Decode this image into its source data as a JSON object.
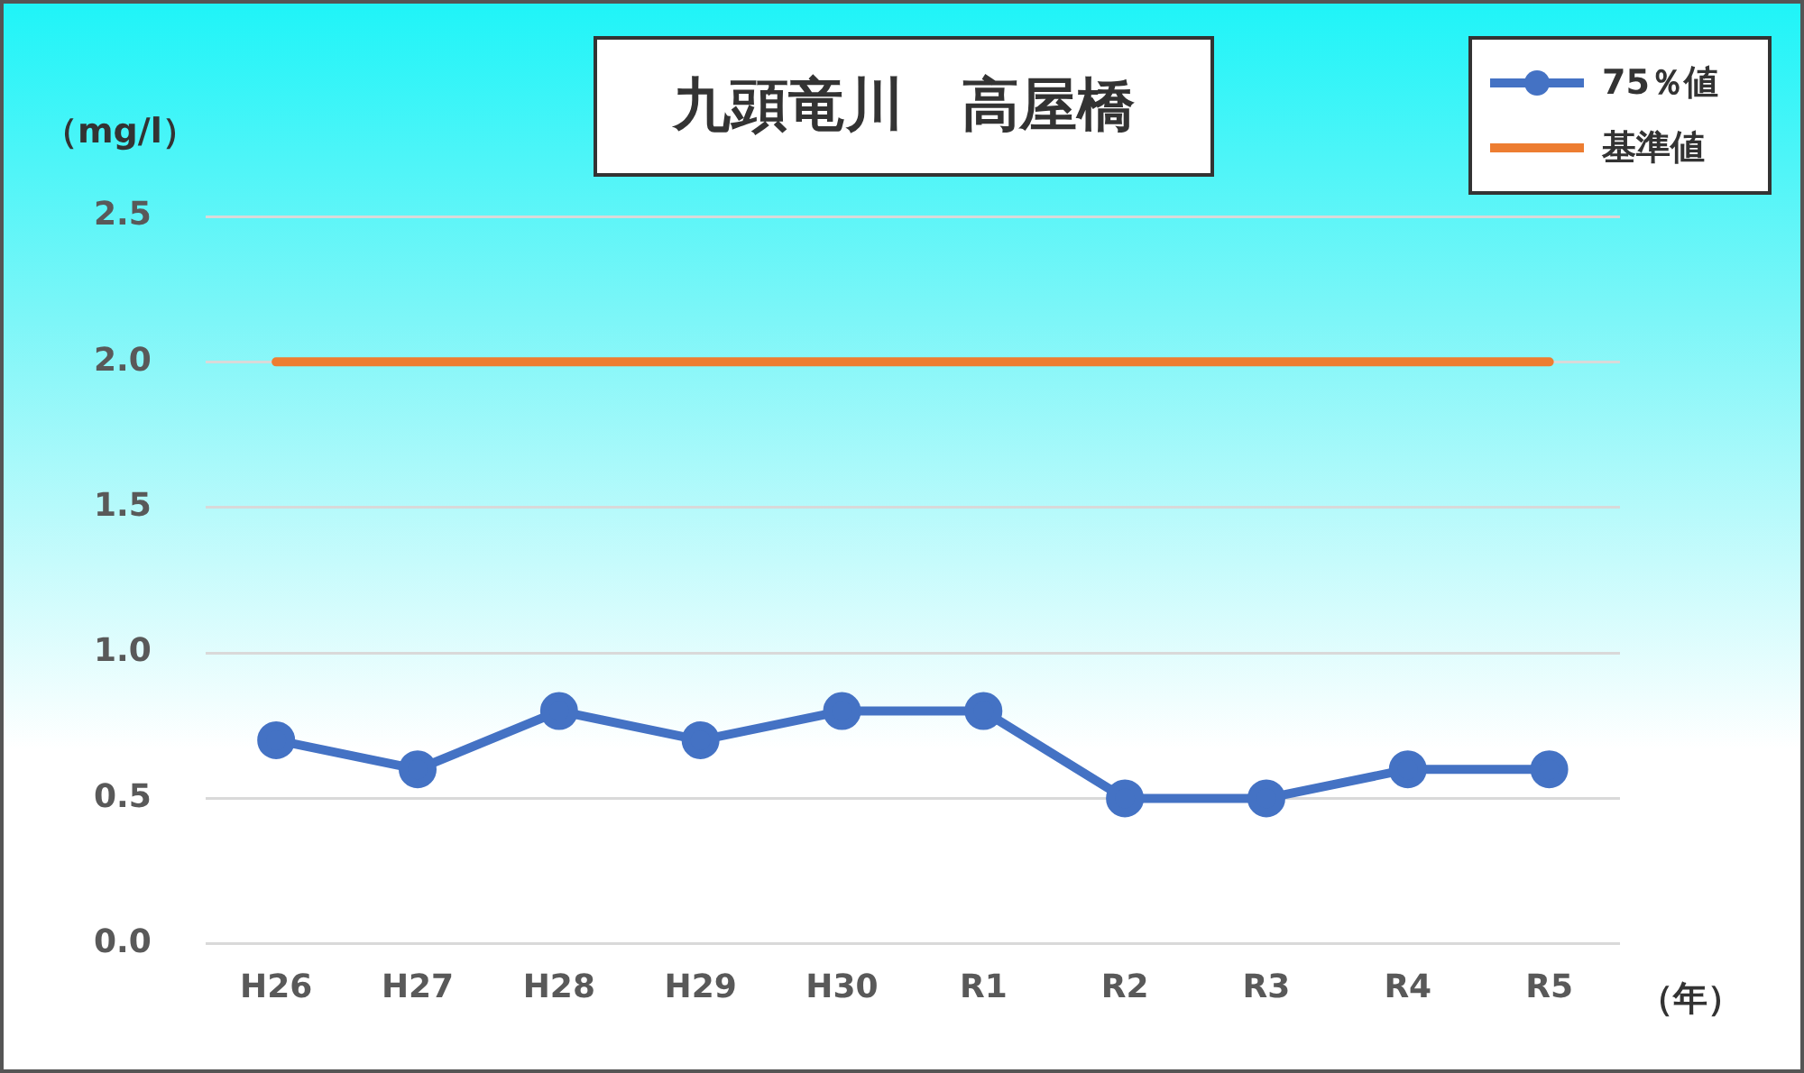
{
  "chart_data": {
    "type": "line",
    "title": "九頭竜川　高屋橋",
    "ylabel": "（mg/l）",
    "xlabel": "（年）",
    "categories": [
      "H26",
      "H27",
      "H28",
      "H29",
      "H30",
      "R1",
      "R2",
      "R3",
      "R4",
      "R5"
    ],
    "series": [
      {
        "name": "75％値",
        "color": "#4472c4",
        "marker": "circle",
        "values": [
          0.7,
          0.6,
          0.8,
          0.7,
          0.8,
          0.8,
          0.5,
          0.5,
          0.6,
          0.6
        ]
      },
      {
        "name": "基準値",
        "color": "#ed7d31",
        "marker": "none",
        "values": [
          2.0,
          2.0,
          2.0,
          2.0,
          2.0,
          2.0,
          2.0,
          2.0,
          2.0,
          2.0
        ]
      }
    ],
    "ylim": [
      0,
      2.5
    ],
    "yticks": [
      {
        "value": 0,
        "label": "0.0"
      },
      0.5,
      {
        "value": 1,
        "label": "1.0"
      },
      1.5,
      {
        "value": 2,
        "label": "2.0"
      },
      2.5
    ],
    "grid": "y",
    "legend": "top right"
  }
}
